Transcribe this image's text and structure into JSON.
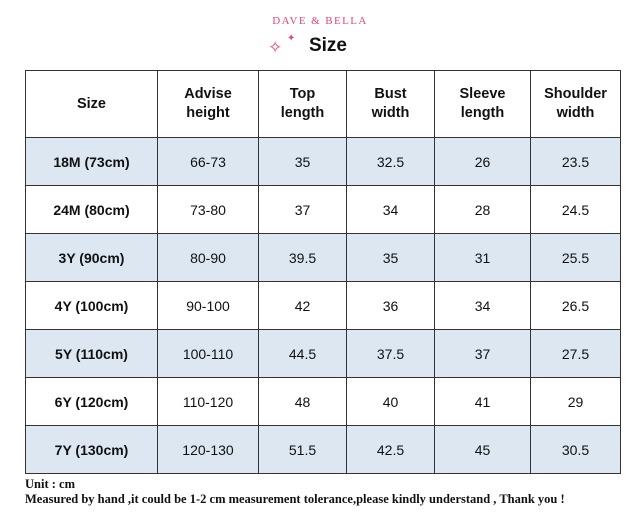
{
  "header": {
    "brand": "DAVE & BELLA",
    "title": "Size"
  },
  "table": {
    "columns": [
      "Size",
      "Advise height",
      "Top length",
      "Bust width",
      "Sleeve length",
      "Shoulder width"
    ],
    "column_lines": [
      [
        "Size"
      ],
      [
        "Advise",
        "height"
      ],
      [
        "Top",
        "length"
      ],
      [
        "Bust",
        "width"
      ],
      [
        "Sleeve",
        "length"
      ],
      [
        "Shoulder",
        "width"
      ]
    ],
    "rows": [
      [
        "18M (73cm)",
        "66-73",
        "35",
        "32.5",
        "26",
        "23.5"
      ],
      [
        "24M (80cm)",
        "73-80",
        "37",
        "34",
        "28",
        "24.5"
      ],
      [
        "3Y (90cm)",
        "80-90",
        "39.5",
        "35",
        "31",
        "25.5"
      ],
      [
        "4Y (100cm)",
        "90-100",
        "42",
        "36",
        "34",
        "26.5"
      ],
      [
        "5Y (110cm)",
        "100-110",
        "44.5",
        "37.5",
        "37",
        "27.5"
      ],
      [
        "6Y (120cm)",
        "110-120",
        "48",
        "40",
        "41",
        "29"
      ],
      [
        "7Y (130cm)",
        "120-130",
        "51.5",
        "42.5",
        "45",
        "30.5"
      ]
    ],
    "row_colors": [
      "#dde7f2",
      "#ffffff"
    ]
  },
  "notes": {
    "unit": "Unit : cm",
    "disclaimer": "Measured by hand ,it could be 1-2 cm measurement tolerance,please kindly understand , Thank you !"
  },
  "colors": {
    "accent": "#e8457a",
    "row_shade": "#dde7f2"
  },
  "icons": [
    "sparkle-icon"
  ]
}
